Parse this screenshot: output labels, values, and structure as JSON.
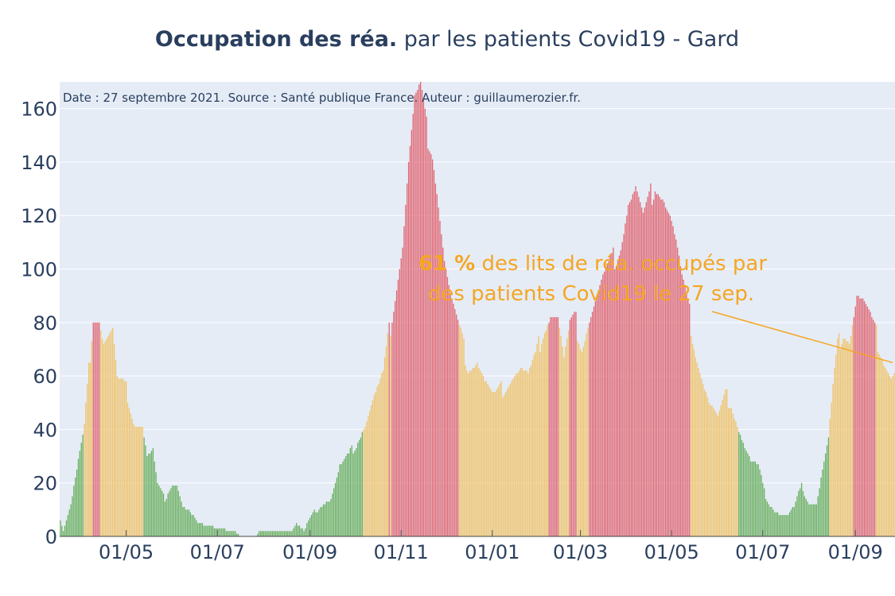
{
  "chart_data": {
    "type": "bar",
    "title_bold": "Occupation des réa.",
    "title_rest": " par les patients Covid19 - Gard",
    "source_note": "Date : 27 septembre 2021. Source : Santé publique France. Auteur : guillaumerozier.fr.",
    "x_start": "2020-03-18",
    "x_end": "2021-09-27",
    "ylim": [
      0,
      170
    ],
    "yticks": [
      0,
      20,
      40,
      60,
      80,
      100,
      120,
      140,
      160
    ],
    "xtick_dates": [
      "2020-05-01",
      "2020-07-01",
      "2020-09-01",
      "2020-11-01",
      "2021-01-01",
      "2021-03-01",
      "2021-05-01",
      "2021-07-01",
      "2021-09-01"
    ],
    "xtick_labels": [
      "01/05",
      "01/07",
      "01/09",
      "01/11",
      "01/01",
      "01/03",
      "01/05",
      "01/07",
      "01/09"
    ],
    "color_thresholds": {
      "green_below": 40,
      "red_from": 80
    },
    "colors": {
      "green": "#6aaf5f",
      "orange": "#f0c36a",
      "red": "#e06672",
      "plot_bg": "#e5ecf6",
      "grid": "#ffffff",
      "text": "#2a3f5f",
      "annotation": "#f5a623"
    },
    "keypoints": [
      [
        "2020-03-18",
        6
      ],
      [
        "2020-03-20",
        2
      ],
      [
        "2020-03-25",
        12
      ],
      [
        "2020-03-30",
        28
      ],
      [
        "2020-04-03",
        40
      ],
      [
        "2020-04-06",
        62
      ],
      [
        "2020-04-09",
        84
      ],
      [
        "2020-04-13",
        82
      ],
      [
        "2020-04-16",
        73
      ],
      [
        "2020-04-22",
        77
      ],
      [
        "2020-04-25",
        58
      ],
      [
        "2020-05-01",
        55
      ],
      [
        "2020-05-07",
        42
      ],
      [
        "2020-05-12",
        41
      ],
      [
        "2020-05-15",
        30
      ],
      [
        "2020-05-19",
        32
      ],
      [
        "2020-05-22",
        19
      ],
      [
        "2020-05-27",
        14
      ],
      [
        "2020-06-01",
        20
      ],
      [
        "2020-06-04",
        19
      ],
      [
        "2020-06-08",
        11
      ],
      [
        "2020-06-13",
        9
      ],
      [
        "2020-06-18",
        5
      ],
      [
        "2020-06-25",
        4
      ],
      [
        "2020-07-01",
        3
      ],
      [
        "2020-07-12",
        2
      ],
      [
        "2020-07-17",
        0
      ],
      [
        "2020-07-27",
        0
      ],
      [
        "2020-07-29",
        2
      ],
      [
        "2020-08-20",
        2
      ],
      [
        "2020-08-23",
        5
      ],
      [
        "2020-08-28",
        2
      ],
      [
        "2020-09-02",
        8
      ],
      [
        "2020-09-10",
        12
      ],
      [
        "2020-09-15",
        14
      ],
      [
        "2020-09-21",
        26
      ],
      [
        "2020-09-27",
        30
      ],
      [
        "2020-10-02",
        35
      ],
      [
        "2020-10-08",
        42
      ],
      [
        "2020-10-14",
        52
      ],
      [
        "2020-10-20",
        60
      ],
      [
        "2020-10-24",
        76
      ],
      [
        "2020-10-28",
        92
      ],
      [
        "2020-11-02",
        110
      ],
      [
        "2020-11-06",
        140
      ],
      [
        "2020-11-10",
        163
      ],
      [
        "2020-11-14",
        167
      ],
      [
        "2020-11-18",
        152
      ],
      [
        "2020-11-22",
        145
      ],
      [
        "2020-11-26",
        125
      ],
      [
        "2020-11-30",
        103
      ],
      [
        "2020-12-04",
        90
      ],
      [
        "2020-12-08",
        80
      ],
      [
        "2020-12-12",
        72
      ],
      [
        "2020-12-16",
        64
      ],
      [
        "2020-12-22",
        66
      ],
      [
        "2020-12-27",
        58
      ],
      [
        "2021-01-02",
        52
      ],
      [
        "2021-01-08",
        55
      ],
      [
        "2021-01-14",
        60
      ],
      [
        "2021-01-20",
        63
      ],
      [
        "2021-01-25",
        60
      ],
      [
        "2021-01-30",
        66
      ],
      [
        "2021-02-04",
        78
      ],
      [
        "2021-02-09",
        84
      ],
      [
        "2021-02-14",
        82
      ],
      [
        "2021-02-18",
        66
      ],
      [
        "2021-02-22",
        78
      ],
      [
        "2021-02-26",
        80
      ],
      [
        "2021-03-02",
        72
      ],
      [
        "2021-03-06",
        80
      ],
      [
        "2021-03-11",
        88
      ],
      [
        "2021-03-16",
        96
      ],
      [
        "2021-03-22",
        102
      ],
      [
        "2021-03-28",
        110
      ],
      [
        "2021-04-02",
        125
      ],
      [
        "2021-04-07",
        130
      ],
      [
        "2021-04-12",
        118
      ],
      [
        "2021-04-16",
        125
      ],
      [
        "2021-04-20",
        133
      ],
      [
        "2021-04-25",
        128
      ],
      [
        "2021-04-30",
        120
      ],
      [
        "2021-05-04",
        110
      ],
      [
        "2021-05-08",
        95
      ],
      [
        "2021-05-13",
        82
      ],
      [
        "2021-05-17",
        70
      ],
      [
        "2021-05-21",
        60
      ],
      [
        "2021-05-26",
        50
      ],
      [
        "2021-06-01",
        44
      ],
      [
        "2021-06-06",
        52
      ],
      [
        "2021-06-10",
        50
      ],
      [
        "2021-06-15",
        40
      ],
      [
        "2021-06-18",
        35
      ],
      [
        "2021-06-23",
        28
      ],
      [
        "2021-06-28",
        26
      ],
      [
        "2021-07-03",
        15
      ],
      [
        "2021-07-08",
        10
      ],
      [
        "2021-07-13",
        8
      ],
      [
        "2021-07-18",
        8
      ],
      [
        "2021-07-22",
        11
      ],
      [
        "2021-07-27",
        19
      ],
      [
        "2021-08-01",
        12
      ],
      [
        "2021-08-06",
        12
      ],
      [
        "2021-08-10",
        25
      ],
      [
        "2021-08-14",
        36
      ],
      [
        "2021-08-17",
        55
      ],
      [
        "2021-08-20",
        70
      ],
      [
        "2021-08-24",
        78
      ],
      [
        "2021-08-28",
        74
      ],
      [
        "2021-09-02",
        90
      ],
      [
        "2021-09-06",
        88
      ],
      [
        "2021-09-10",
        82
      ],
      [
        "2021-09-14",
        76
      ],
      [
        "2021-09-18",
        70
      ],
      [
        "2021-09-22",
        64
      ],
      [
        "2021-09-25",
        60
      ],
      [
        "2021-09-27",
        61
      ]
    ],
    "annotation": {
      "value_label": "61 %",
      "line1_rest": " des lits de réa. occupés par",
      "line2": "des patients Covid19 le 27 sep.",
      "points_to_date": "2021-09-27",
      "points_to_value": 65
    }
  }
}
